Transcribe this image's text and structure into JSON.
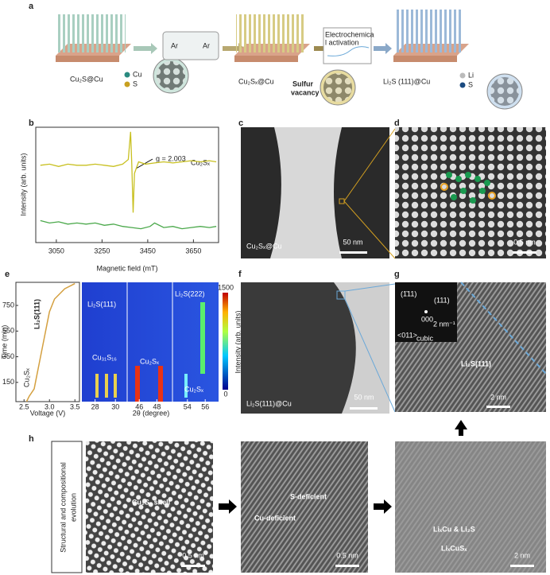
{
  "panel_labels": [
    "a",
    "b",
    "c",
    "d",
    "e",
    "f",
    "g",
    "h"
  ],
  "schematic": {
    "cu2s_cu": "Cu₂S@Cu",
    "legend_cu": "Cu",
    "legend_s": "S",
    "ar_left": "Ar",
    "ar_right": "Ar",
    "activation": [
      "Electrochemica",
      "l activation"
    ],
    "cu2sx_cu": "Cu₂Sₓ@Cu",
    "sulfur_vacancy": [
      "Sulfur",
      "vacancy"
    ],
    "li2s_cu": "Li₂S (111)@Cu",
    "legend_li": "Li",
    "legend_s2": "S"
  },
  "chart_data": {
    "type": "line",
    "xlabel": "Magnetic field (mT)",
    "ylabel": "Intensity (arb. units)",
    "annotation": "g = 2.003",
    "xlim": [
      2960,
      3760
    ],
    "xticks": [
      3050,
      3250,
      3450,
      3650
    ],
    "ylim": [
      0,
      10
    ],
    "series": [
      {
        "name": "Cu₂Sₓ",
        "color": "#c8c020",
        "x": [
          2980,
          3020,
          3060,
          3100,
          3140,
          3180,
          3220,
          3260,
          3300,
          3340,
          3365,
          3375,
          3380,
          3386,
          3392,
          3410,
          3440,
          3480,
          3520,
          3560,
          3600,
          3640,
          3680,
          3720,
          3750
        ],
        "values": [
          6.7,
          6.8,
          6.6,
          6.8,
          6.7,
          6.7,
          6.8,
          6.7,
          6.6,
          6.8,
          7.2,
          9.6,
          6.8,
          2.6,
          6.0,
          7.0,
          6.8,
          6.9,
          7.0,
          6.9,
          7.0,
          7.1,
          7.0,
          7.1,
          7.0
        ]
      },
      {
        "color": "#4aa84a",
        "x": [
          2980,
          3020,
          3060,
          3100,
          3140,
          3180,
          3220,
          3260,
          3300,
          3340,
          3380,
          3420,
          3460,
          3480,
          3520,
          3560,
          3600,
          3640,
          3680,
          3720,
          3750
        ],
        "values": [
          1.9,
          1.7,
          1.8,
          1.6,
          1.7,
          1.6,
          1.7,
          1.5,
          1.6,
          1.4,
          1.3,
          1.2,
          1.4,
          1.7,
          1.3,
          1.4,
          1.2,
          1.3,
          1.4,
          1.3,
          1.4
        ]
      }
    ]
  },
  "panel_c": {
    "label": "Cu₂Sₓ@Cu",
    "scale": "50 nm"
  },
  "panel_d": {
    "scale": "0.5 nm"
  },
  "panel_e": {
    "ylabel": "Time (min)",
    "xlabel": "Voltage (V)",
    "heat_xlabel": "2θ (degree)",
    "cbar_label": "Intensity (arb. units)",
    "xlim": [
      2.34,
      3.59
    ],
    "xticks": [
      2.5,
      {
        "value": 3,
        "label": "3.0"
      },
      3.5
    ],
    "ylim": [
      0,
      930
    ],
    "yticks": [
      150,
      350,
      550,
      750
    ],
    "voltage": {
      "x": [
        2.55,
        2.6,
        2.7,
        2.75,
        2.8,
        2.85,
        2.9,
        2.95,
        3.0,
        3.1,
        3.3,
        3.5
      ],
      "values": [
        0,
        40,
        100,
        200,
        300,
        400,
        500,
        600,
        700,
        800,
        880,
        920
      ]
    },
    "two_theta_segments": [
      [
        26.7,
        31
      ],
      [
        44.8,
        49.6
      ],
      [
        52.5,
        57.5
      ]
    ],
    "two_theta_ticks": [
      28,
      30,
      46,
      48,
      54,
      56
    ],
    "cbar_lim": [
      0,
      1500
    ],
    "cbar_ticks": [
      0,
      1500
    ],
    "li2s111_arrow": "Li₂S(111)",
    "cu2sx_arrow": "Cu₂Sₓ",
    "li2s111": "Li₂S(111)",
    "cu31s16": "Cu₃₁S₁₆",
    "cu2sx_mid": "Cu₂Sₓ",
    "li2s222": "Li₂S(222)",
    "cu2sx_right": "Cu₂Sₓ"
  },
  "panel_f": {
    "label": "Li₂S(111)@Cu",
    "scale": "50 nm"
  },
  "panel_g": {
    "spot1": "(1̄11)",
    "spot2": "(111)",
    "center": "000",
    "zone": "<011>",
    "zone_sub": "cubic",
    "inset_scale": "2 nm⁻¹",
    "plane": "Li₂S(111)",
    "scale": "2 nm"
  },
  "panel_h": {
    "side": [
      "Structural and compositional",
      "evolution"
    ],
    "shell": "Cu₂Sₓ shell",
    "scale1": "0.5 nm",
    "s_def": "S-deficient",
    "cu_def": "Cu-deficient",
    "scale2": "0.5 nm",
    "lixcu": "LiₓCu & Li₂S",
    "licus": "LiₓCuSₓ",
    "scale3": "2 nm"
  }
}
